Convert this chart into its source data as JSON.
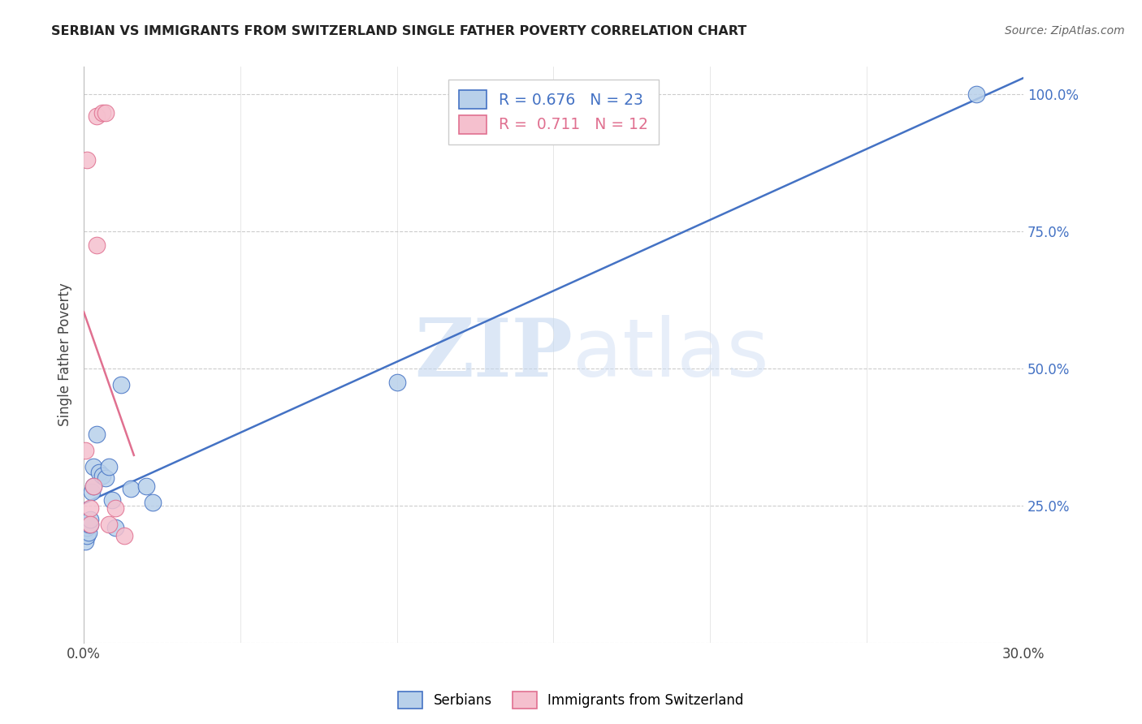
{
  "title": "SERBIAN VS IMMIGRANTS FROM SWITZERLAND SINGLE FATHER POVERTY CORRELATION CHART",
  "source": "Source: ZipAtlas.com",
  "ylabel": "Single Father Poverty",
  "xlim": [
    0.0,
    0.3
  ],
  "ylim": [
    0.0,
    1.05
  ],
  "serbian_R": 0.676,
  "serbian_N": 23,
  "swiss_R": 0.711,
  "swiss_N": 12,
  "serbian_color": "#b8d0ea",
  "swiss_color": "#f5c0ce",
  "serbian_line_color": "#4472c4",
  "swiss_line_color": "#e07090",
  "legend_label_serbian": "Serbians",
  "legend_label_swiss": "Immigrants from Switzerland",
  "watermark_zip": "ZIP",
  "watermark_atlas": "atlas",
  "background_color": "#ffffff",
  "grid_color": "#cccccc",
  "right_axis_color": "#4472c4",
  "title_color": "#222222",
  "source_color": "#666666",
  "serbian_x": [
    0.0005,
    0.001,
    0.001,
    0.0015,
    0.0015,
    0.002,
    0.002,
    0.0025,
    0.003,
    0.003,
    0.004,
    0.005,
    0.006,
    0.007,
    0.008,
    0.009,
    0.01,
    0.012,
    0.015,
    0.02,
    0.022,
    0.1,
    0.285
  ],
  "serbian_y": [
    0.185,
    0.195,
    0.21,
    0.2,
    0.215,
    0.215,
    0.225,
    0.275,
    0.285,
    0.32,
    0.38,
    0.31,
    0.305,
    0.3,
    0.32,
    0.26,
    0.21,
    0.47,
    0.28,
    0.285,
    0.255,
    0.475,
    1.0
  ],
  "swiss_x": [
    0.0005,
    0.001,
    0.002,
    0.002,
    0.003,
    0.004,
    0.004,
    0.006,
    0.007,
    0.008,
    0.01,
    0.013
  ],
  "swiss_y": [
    0.35,
    0.88,
    0.245,
    0.215,
    0.285,
    0.725,
    0.96,
    0.965,
    0.965,
    0.215,
    0.245,
    0.195
  ],
  "x_tick_positions": [
    0.0,
    0.05,
    0.1,
    0.15,
    0.2,
    0.25,
    0.3
  ],
  "x_tick_labels": [
    "0.0%",
    "",
    "",
    "",
    "",
    "",
    "30.0%"
  ],
  "y_tick_positions": [
    0.0,
    0.25,
    0.5,
    0.75,
    1.0
  ],
  "y_tick_labels_right": [
    "",
    "25.0%",
    "50.0%",
    "75.0%",
    "100.0%"
  ]
}
